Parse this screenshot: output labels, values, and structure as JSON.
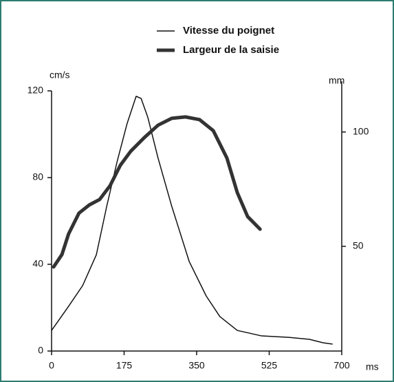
{
  "chart_data": {
    "type": "line",
    "ylabel": "cm/s",
    "y2label": "mm",
    "xlabel": "ms",
    "xlim": [
      0,
      700
    ],
    "xticks": [
      0,
      175,
      350,
      525,
      700
    ],
    "ylim": [
      0,
      120
    ],
    "yticks": [
      0,
      40,
      80,
      120
    ],
    "y2lim": [
      4.2,
      118
    ],
    "y2ticks": [
      50,
      100
    ],
    "series": [
      {
        "name": "Vitesse du poignet",
        "color": "#111111",
        "width": 1.5,
        "x": [
          0,
          41,
          75,
          108,
          133,
          158,
          182,
          204,
          216,
          232,
          257,
          290,
          332,
          373,
          406,
          448,
          506,
          572,
          622,
          655,
          677
        ],
        "values": [
          9.5,
          20.6,
          30.2,
          44.4,
          66.7,
          87.3,
          104.8,
          117.5,
          116.5,
          107.9,
          88.9,
          66.7,
          41.3,
          25.4,
          15.9,
          9.5,
          7.0,
          6.3,
          5.4,
          3.8,
          3.2
        ]
      },
      {
        "name": "Largeur de la saisie",
        "color": "#333333",
        "width": 5,
        "axis": "y2",
        "x": [
          5,
          25,
          41,
          66,
          91,
          116,
          141,
          166,
          191,
          224,
          257,
          290,
          323,
          357,
          390,
          423,
          448,
          473,
          503
        ],
        "values": [
          41.0,
          46.4,
          55.4,
          64.5,
          68.1,
          70.5,
          76.5,
          85.5,
          91.6,
          97.6,
          103.0,
          106.0,
          106.6,
          105.4,
          100.6,
          88.6,
          73.5,
          63.0,
          57.5
        ]
      }
    ]
  }
}
